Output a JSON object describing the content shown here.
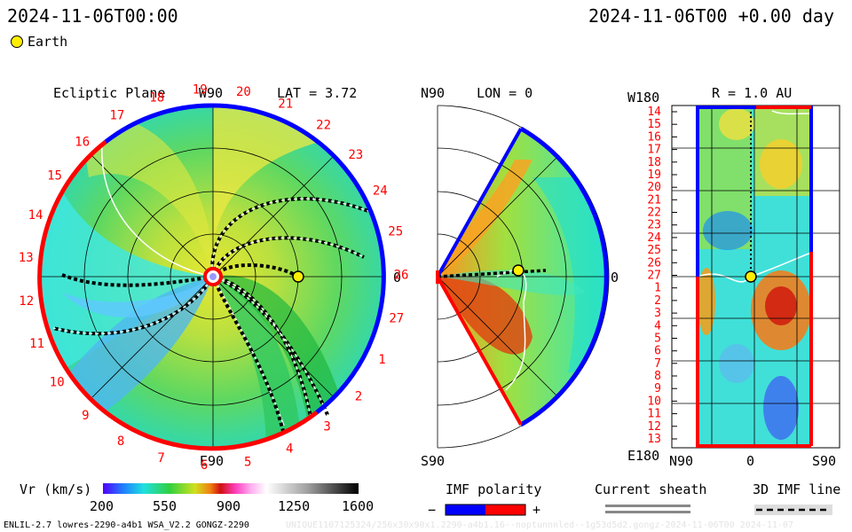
{
  "header": {
    "left_time": "2024-11-06T00:00",
    "right_time": "2024-11-06T00 +0.00 day",
    "legend_earth": "Earth"
  },
  "colors": {
    "earth": "#ffee00",
    "imf_negative": "#0000ff",
    "imf_positive": "#ff0000",
    "sheath": "#888888",
    "latitude_title_color": "#000000"
  },
  "ecliptic": {
    "title": "Ecliptic Plane",
    "top_label": "W90",
    "bottom_label": "E90",
    "right_label": "0",
    "lat_label": "LAT = 3.72",
    "sectors": [
      "19",
      "20",
      "21",
      "22",
      "23",
      "24",
      "25",
      "26",
      "27",
      "1",
      "2",
      "3",
      "4",
      "5",
      "6",
      "7",
      "8",
      "9",
      "10",
      "11",
      "12",
      "13",
      "14",
      "15",
      "16",
      "17",
      "18"
    ],
    "earth_au": 1.0
  },
  "meridional": {
    "top_label": "N90",
    "bottom_label": "S90",
    "right_label": "0",
    "lon_label": "LON = 0"
  },
  "latlon": {
    "title": "R = 1.0 AU",
    "top_left_label": "W180",
    "bottom_left_label": "E180",
    "x_labels": [
      "N90",
      "0",
      "S90"
    ],
    "rotation_numbers": [
      "14",
      "15",
      "16",
      "17",
      "18",
      "19",
      "20",
      "21",
      "22",
      "23",
      "24",
      "25",
      "26",
      "27",
      "1",
      "2",
      "3",
      "4",
      "5",
      "6",
      "7",
      "8",
      "9",
      "10",
      "11",
      "12",
      "13"
    ]
  },
  "colorbar": {
    "label": "Vr (km/s)",
    "ticks": [
      "200",
      "550",
      "900",
      "1250",
      "1600"
    ]
  },
  "imf": {
    "title": "IMF polarity",
    "minus": "−",
    "plus": "+"
  },
  "sheath": {
    "title": "Current sheath"
  },
  "imfline": {
    "title": "3D IMF line"
  },
  "footer": {
    "left": "ENLIL-2.7 lowres-2290-a4b1 WSA_V2.2 GONGZ-2290",
    "right": "UNIQUE1107125324/256x30x90x1.2290-a4b1.16--noptunnnled--1g53d5d2.gongz-2024-11-06T00  2024-11-07"
  }
}
